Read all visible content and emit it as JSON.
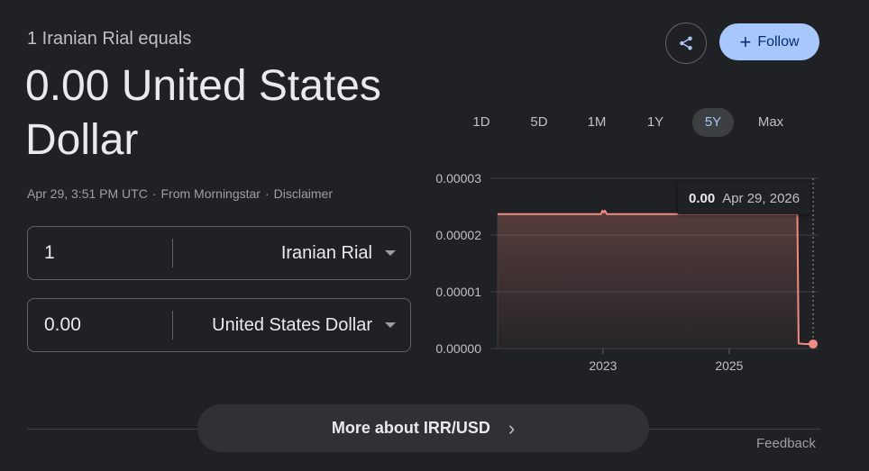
{
  "header": {
    "subtitle": "1 Iranian Rial equals",
    "headline": "0.00 United States Dollar",
    "timestamp": "Apr 29, 3:51 PM UTC",
    "source": "From Morningstar",
    "disclaimer": "Disclaimer",
    "separator": "·"
  },
  "converter": {
    "from": {
      "amount": "1",
      "currency": "Iranian Rial"
    },
    "to": {
      "amount": "0.00",
      "currency": "United States Dollar"
    }
  },
  "actions": {
    "share_icon": "share-icon",
    "follow_label": "Follow",
    "follow_plus": "+"
  },
  "ranges": [
    "1D",
    "5D",
    "1M",
    "1Y",
    "5Y",
    "Max"
  ],
  "active_range": "5Y",
  "tooltip": {
    "value": "0.00",
    "date": "Apr 29, 2026"
  },
  "more_label": "More about IRR/USD",
  "feedback_label": "Feedback",
  "colors": {
    "line": "#f28b82",
    "accent": "#a8c7fa",
    "background": "#202124"
  },
  "chart_data": {
    "type": "area",
    "x_ticks": [
      "2023",
      "2025"
    ],
    "y_ticks": [
      "0.00000",
      "0.00001",
      "0.00002",
      "0.00003"
    ],
    "ylim": [
      0,
      3e-05
    ],
    "xlim": [
      2021.33,
      2026.33
    ],
    "grid": true,
    "series": [
      {
        "x": [
          2021.33,
          2022.5,
          2022.97,
          2022.99,
          2023.01,
          2023.03,
          2023.06,
          2023.5,
          2024.5,
          2025.5,
          2026.0,
          2026.08,
          2026.1,
          2026.2,
          2026.33
        ],
        "y": [
          2.37e-05,
          2.37e-05,
          2.37e-05,
          2.43e-05,
          2.4e-05,
          2.43e-05,
          2.37e-05,
          2.37e-05,
          2.37e-05,
          2.37e-05,
          2.37e-05,
          2.37e-05,
          9e-07,
          8e-07,
          8e-07
        ]
      }
    ]
  }
}
